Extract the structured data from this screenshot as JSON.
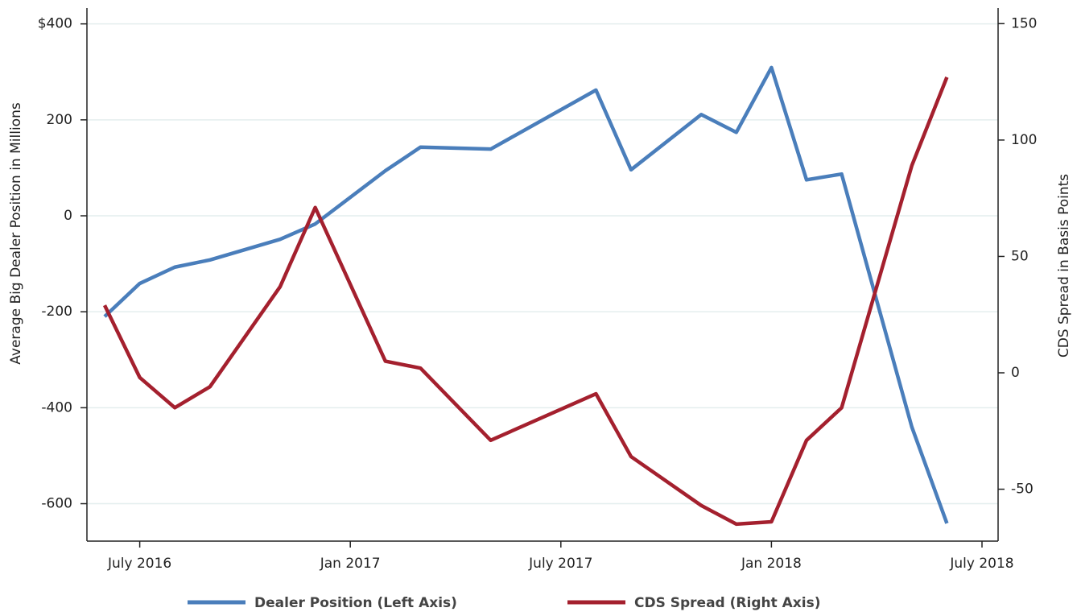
{
  "chart_data": {
    "type": "line",
    "x": [
      "2016-06",
      "2016-07",
      "2016-08",
      "2016-09",
      "2016-11",
      "2016-12",
      "2017-02",
      "2017-03",
      "2017-05",
      "2017-08",
      "2017-09",
      "2017-11",
      "2017-12",
      "2018-01",
      "2018-02",
      "2018-03",
      "2018-05",
      "2018-06"
    ],
    "xticks": [
      {
        "value": "2016-07",
        "label": "July 2016"
      },
      {
        "value": "2017-01",
        "label": "Jan 2017"
      },
      {
        "value": "2017-07",
        "label": "July 2017"
      },
      {
        "value": "2018-01",
        "label": "Jan 2018"
      },
      {
        "value": "2018-07",
        "label": "July 2018"
      }
    ],
    "y_label": "Average Big Dealer Position in Millions",
    "y2_label": "CDS Spread in Basis Points",
    "ylim": [
      -678,
      433
    ],
    "yticks": [
      {
        "value": 400,
        "label": "$400"
      },
      200,
      0,
      -200,
      -400,
      -600
    ],
    "y2lim": [
      -72.3,
      156.7
    ],
    "y2ticks": [
      150,
      100,
      50,
      0,
      -50
    ],
    "grid": true,
    "series": [
      {
        "name": "Dealer Position (Left Axis)",
        "color": "#4a7ebb",
        "values": [
          -210,
          -141,
          -107,
          -92,
          -49,
          -17,
          94,
          143,
          139,
          262,
          96,
          211,
          174,
          309,
          75,
          87,
          -440,
          -641
        ]
      },
      {
        "name": "CDS Spread (Right Axis)",
        "color": "#a4202e",
        "axis": "y2",
        "values": [
          29,
          -2,
          -15,
          -6,
          37,
          71,
          5,
          2,
          -29,
          -9,
          -36,
          -57,
          -65,
          -64,
          -29,
          -15,
          89,
          127
        ]
      }
    ]
  }
}
